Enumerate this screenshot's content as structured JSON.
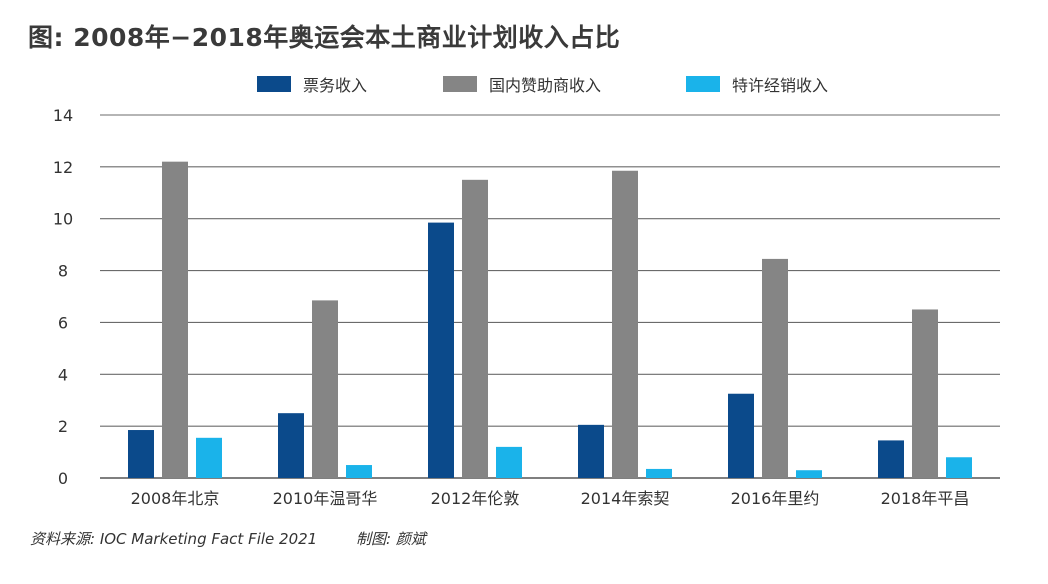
{
  "title": "图: 2008年−2018年奥运会本土商业计划收入占比",
  "legend": [
    {
      "label": "票务收入",
      "color": "#0b4a8b"
    },
    {
      "label": "国内赞助商收入",
      "color": "#858585"
    },
    {
      "label": "特许经销收入",
      "color": "#1ab3ea"
    }
  ],
  "chart_data": {
    "type": "bar",
    "title": "图: 2008年−2018年奥运会本土商业计划收入占比",
    "categories": [
      "2008年北京",
      "2010年温哥华",
      "2012年伦敦",
      "2014年索契",
      "2016年里约",
      "2018年平昌"
    ],
    "series": [
      {
        "name": "票务收入",
        "color": "#0b4a8b",
        "values": [
          1.85,
          2.5,
          9.85,
          2.05,
          3.25,
          1.45
        ]
      },
      {
        "name": "国内赞助商收入",
        "color": "#858585",
        "values": [
          12.2,
          6.85,
          11.5,
          11.85,
          8.45,
          6.5
        ]
      },
      {
        "name": "特许经销收入",
        "color": "#1ab3ea",
        "values": [
          1.55,
          0.5,
          1.2,
          0.35,
          0.3,
          0.8
        ]
      }
    ],
    "yticks": [
      0,
      2,
      4,
      6,
      8,
      10,
      12,
      14
    ],
    "ylim": [
      0,
      14
    ],
    "xlabel": "",
    "ylabel": "",
    "grid": true,
    "legend_position": "top"
  },
  "footer": {
    "source": "资料来源: IOC Marketing Fact File 2021",
    "credit": "制图: 颜斌"
  }
}
